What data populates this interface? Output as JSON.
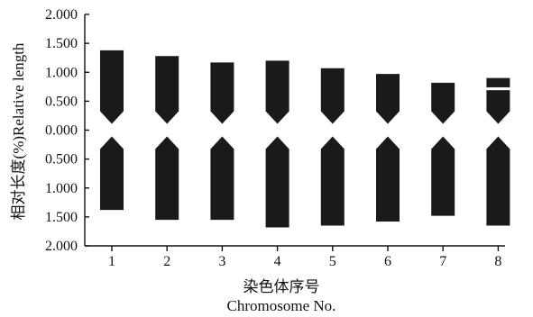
{
  "chart_data": {
    "type": "ideogram",
    "title": "",
    "ylabel": "相对长度(%)Relative length",
    "xlabel_cn": "染色体序号",
    "xlabel_en": "Chromosome No.",
    "y_ticks": [
      "2.000",
      "1.500",
      "1.000",
      "0.500",
      "0.000",
      "0.500",
      "1.000",
      "1.500",
      "2.000"
    ],
    "y_tick_values": [
      2.0,
      1.5,
      1.0,
      0.5,
      0.0,
      -0.5,
      -1.0,
      -1.5,
      -2.0
    ],
    "ylim": [
      -2.0,
      2.0
    ],
    "categories": [
      "1",
      "2",
      "3",
      "4",
      "5",
      "6",
      "7",
      "8"
    ],
    "series": [
      {
        "name": "",
        "short_arm": [
          1.38,
          1.28,
          1.17,
          1.2,
          1.07,
          0.97,
          0.82,
          0.9
        ],
        "long_arm": [
          1.38,
          1.55,
          1.55,
          1.68,
          1.65,
          1.58,
          1.48,
          1.65
        ]
      }
    ],
    "satellite": {
      "chromosome": "8",
      "band_top": 0.74,
      "band_bottom": 0.69
    },
    "grid": false,
    "legend": "none"
  }
}
